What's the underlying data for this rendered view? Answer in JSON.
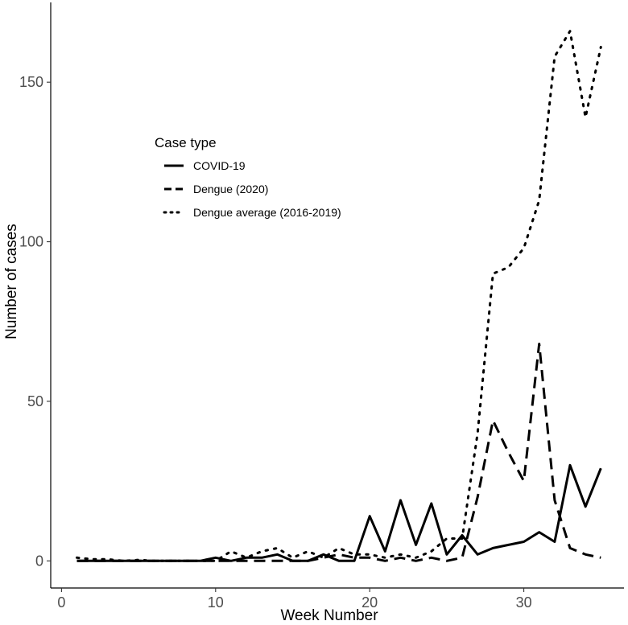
{
  "chart_data": {
    "type": "line",
    "xlabel": "Week Number",
    "ylabel": "Number of cases",
    "xlim": [
      -0.7,
      36.5
    ],
    "ylim": [
      -8.5,
      175
    ],
    "x_ticks": [
      0,
      10,
      20,
      30
    ],
    "y_ticks": [
      0,
      50,
      100,
      150
    ],
    "grid": false,
    "legend": {
      "title": "Case type",
      "placement": "top-left inside"
    },
    "series": [
      {
        "name": "COVID-19",
        "style": "solid",
        "x": [
          1,
          2,
          3,
          4,
          5,
          6,
          7,
          8,
          9,
          10,
          11,
          12,
          13,
          14,
          15,
          16,
          17,
          18,
          19,
          20,
          21,
          22,
          23,
          24,
          25,
          26,
          27,
          28,
          29,
          30,
          31,
          32,
          33,
          34,
          35
        ],
        "values": [
          0,
          0,
          0,
          0,
          0,
          0,
          0,
          0,
          0,
          1,
          0,
          1,
          1,
          2,
          0,
          0,
          2,
          0,
          0,
          14,
          3,
          19,
          5,
          18,
          2,
          8,
          2,
          4,
          5,
          6,
          9,
          6,
          30,
          17,
          29
        ]
      },
      {
        "name": "Dengue (2020)",
        "style": "dashed",
        "x": [
          1,
          2,
          3,
          4,
          5,
          6,
          7,
          8,
          9,
          10,
          11,
          12,
          13,
          14,
          15,
          16,
          17,
          18,
          19,
          20,
          21,
          22,
          23,
          24,
          25,
          26,
          27,
          28,
          29,
          30,
          31,
          32,
          33,
          34,
          35
        ],
        "values": [
          0,
          0,
          0,
          0,
          0,
          0,
          0,
          0,
          0,
          0,
          0,
          0,
          0,
          0,
          0,
          0,
          1,
          2,
          1,
          1,
          0,
          1,
          0,
          1,
          0,
          1,
          20,
          44,
          34,
          25,
          68,
          19,
          4,
          2,
          1
        ]
      },
      {
        "name": "Dengue average (2016-2019)",
        "style": "dotted",
        "x": [
          1,
          2,
          3,
          4,
          5,
          6,
          7,
          8,
          9,
          10,
          11,
          12,
          13,
          14,
          15,
          16,
          17,
          18,
          19,
          20,
          21,
          22,
          23,
          24,
          25,
          26,
          27,
          28,
          29,
          30,
          31,
          32,
          33,
          34,
          35
        ],
        "values": [
          1,
          0.5,
          0.5,
          0,
          0.3,
          0,
          0,
          0,
          0,
          0,
          3,
          1,
          3,
          4,
          1,
          3,
          1,
          4,
          2,
          2,
          1,
          2,
          1,
          3,
          7,
          7,
          40,
          90,
          92,
          98,
          113,
          158,
          166,
          139,
          161
        ]
      }
    ]
  }
}
